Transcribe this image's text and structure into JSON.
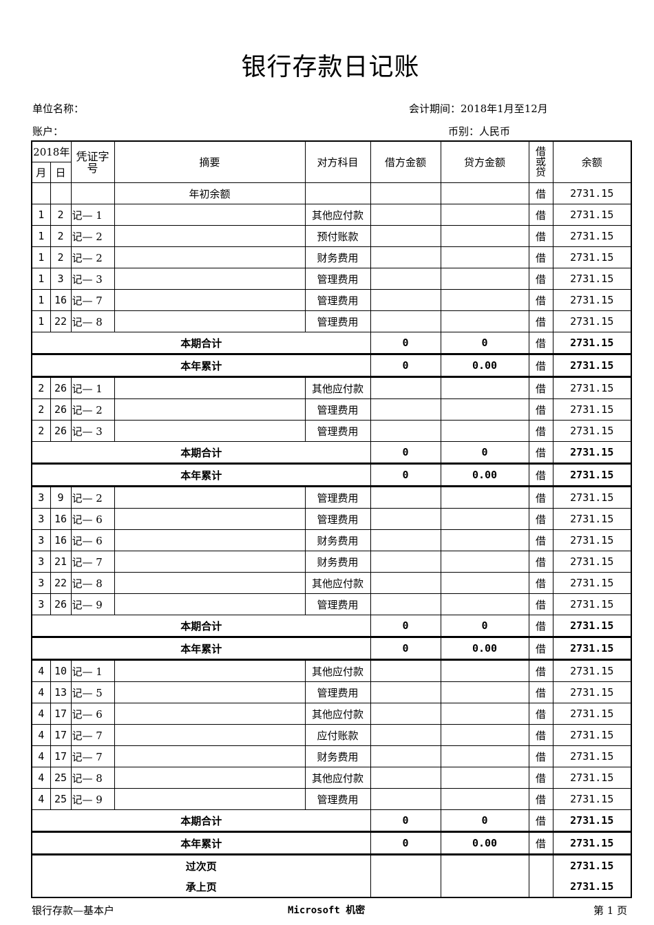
{
  "title": "银行存款日记账",
  "unit_label": "单位名称：",
  "period": "会计期间：2018年1月至12月",
  "account_label": "账户：",
  "currency": "币别：人民币",
  "headers": {
    "year": "2018年",
    "month": "月",
    "day": "日",
    "voucher": "凭证字号",
    "summary": "摘要",
    "counter": "对方科目",
    "debit": "借方金额",
    "credit": "贷方金额",
    "dc": "借或贷",
    "balance": "余额"
  },
  "opening": {
    "summary": "年初余额",
    "dc": "借",
    "balance": "2731.15"
  },
  "rows": [
    {
      "type": "entry",
      "m": "1",
      "d": "2",
      "v": "记— 1",
      "acct": "其他应付款",
      "dc": "借",
      "bal": "2731.15"
    },
    {
      "type": "entry",
      "m": "1",
      "d": "2",
      "v": "记— 2",
      "acct": "预付账款",
      "dc": "借",
      "bal": "2731.15"
    },
    {
      "type": "entry",
      "m": "1",
      "d": "2",
      "v": "记— 2",
      "acct": "财务费用",
      "dc": "借",
      "bal": "2731.15"
    },
    {
      "type": "entry",
      "m": "1",
      "d": "3",
      "v": "记— 3",
      "acct": "管理费用",
      "dc": "借",
      "bal": "2731.15"
    },
    {
      "type": "entry",
      "m": "1",
      "d": "16",
      "v": "记— 7",
      "acct": "管理费用",
      "dc": "借",
      "bal": "2731.15"
    },
    {
      "type": "entry",
      "m": "1",
      "d": "22",
      "v": "记— 8",
      "acct": "管理费用",
      "dc": "借",
      "bal": "2731.15"
    },
    {
      "type": "sum",
      "label": "本期合计",
      "debit": "0",
      "credit": "0",
      "dc": "借",
      "bal": "2731.15"
    },
    {
      "type": "sum",
      "label": "本年累计",
      "debit": "0",
      "credit": "0.00",
      "dc": "借",
      "bal": "2731.15"
    },
    {
      "type": "entry",
      "m": "2",
      "d": "26",
      "v": "记— 1",
      "acct": "其他应付款",
      "dc": "借",
      "bal": "2731.15"
    },
    {
      "type": "entry",
      "m": "2",
      "d": "26",
      "v": "记— 2",
      "acct": "管理费用",
      "dc": "借",
      "bal": "2731.15"
    },
    {
      "type": "entry",
      "m": "2",
      "d": "26",
      "v": "记— 3",
      "acct": "管理费用",
      "dc": "借",
      "bal": "2731.15"
    },
    {
      "type": "sum",
      "label": "本期合计",
      "debit": "0",
      "credit": "0",
      "dc": "借",
      "bal": "2731.15"
    },
    {
      "type": "sum",
      "label": "本年累计",
      "debit": "0",
      "credit": "0.00",
      "dc": "借",
      "bal": "2731.15"
    },
    {
      "type": "entry",
      "m": "3",
      "d": "9",
      "v": "记— 2",
      "acct": "管理费用",
      "dc": "借",
      "bal": "2731.15"
    },
    {
      "type": "entry",
      "m": "3",
      "d": "16",
      "v": "记— 6",
      "acct": "管理费用",
      "dc": "借",
      "bal": "2731.15"
    },
    {
      "type": "entry",
      "m": "3",
      "d": "16",
      "v": "记— 6",
      "acct": "财务费用",
      "dc": "借",
      "bal": "2731.15"
    },
    {
      "type": "entry",
      "m": "3",
      "d": "21",
      "v": "记— 7",
      "acct": "财务费用",
      "dc": "借",
      "bal": "2731.15"
    },
    {
      "type": "entry",
      "m": "3",
      "d": "22",
      "v": "记— 8",
      "acct": "其他应付款",
      "dc": "借",
      "bal": "2731.15"
    },
    {
      "type": "entry",
      "m": "3",
      "d": "26",
      "v": "记— 9",
      "acct": "管理费用",
      "dc": "借",
      "bal": "2731.15"
    },
    {
      "type": "sum",
      "label": "本期合计",
      "debit": "0",
      "credit": "0",
      "dc": "借",
      "bal": "2731.15"
    },
    {
      "type": "sum",
      "label": "本年累计",
      "debit": "0",
      "credit": "0.00",
      "dc": "借",
      "bal": "2731.15"
    },
    {
      "type": "entry",
      "m": "4",
      "d": "10",
      "v": "记— 1",
      "acct": "其他应付款",
      "dc": "借",
      "bal": "2731.15"
    },
    {
      "type": "entry",
      "m": "4",
      "d": "13",
      "v": "记— 5",
      "acct": "管理费用",
      "dc": "借",
      "bal": "2731.15"
    },
    {
      "type": "entry",
      "m": "4",
      "d": "17",
      "v": "记— 6",
      "acct": "其他应付款",
      "dc": "借",
      "bal": "2731.15"
    },
    {
      "type": "entry",
      "m": "4",
      "d": "17",
      "v": "记— 7",
      "acct": "应付账款",
      "dc": "借",
      "bal": "2731.15"
    },
    {
      "type": "entry",
      "m": "4",
      "d": "17",
      "v": "记— 7",
      "acct": "财务费用",
      "dc": "借",
      "bal": "2731.15"
    },
    {
      "type": "entry",
      "m": "4",
      "d": "25",
      "v": "记— 8",
      "acct": "其他应付款",
      "dc": "借",
      "bal": "2731.15"
    },
    {
      "type": "entry",
      "m": "4",
      "d": "25",
      "v": "记— 9",
      "acct": "管理费用",
      "dc": "借",
      "bal": "2731.15"
    },
    {
      "type": "sum",
      "label": "本期合计",
      "debit": "0",
      "credit": "0",
      "dc": "借",
      "bal": "2731.15"
    },
    {
      "type": "sum",
      "label": "本年累计",
      "debit": "0",
      "credit": "0.00",
      "dc": "借",
      "bal": "2731.15"
    },
    {
      "type": "carry",
      "label": "过次页",
      "bal": "2731.15"
    },
    {
      "type": "carry",
      "label": "承上页",
      "bal": "2731.15"
    }
  ],
  "footer": {
    "left": "银行存款—基本户",
    "center": "Microsoft 机密",
    "right": "第 1 页"
  }
}
